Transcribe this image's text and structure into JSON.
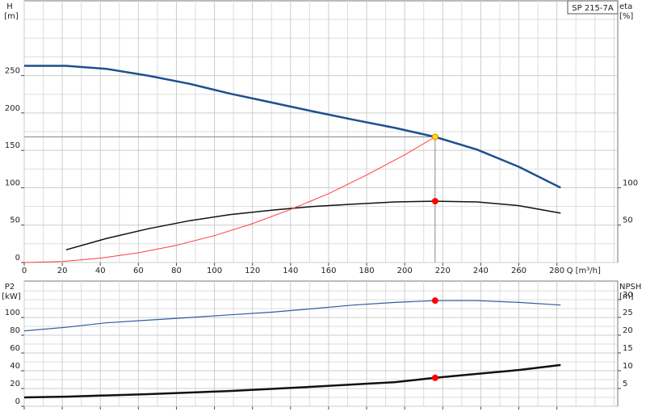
{
  "chart_data": [
    {
      "type": "line",
      "label_box": "SP 215-7A",
      "ylabel": "H",
      "yunit": "[m]",
      "y2label": "eta",
      "y2unit": "[%]",
      "xlabel": "Q [m³/h]",
      "xlim": [
        0,
        312
      ],
      "ylim": [
        0,
        350
      ],
      "y2lim": [
        0,
        350
      ],
      "xticks": [
        0,
        20,
        40,
        60,
        80,
        100,
        120,
        140,
        160,
        180,
        200,
        220,
        240,
        260,
        280
      ],
      "xminorticks": [
        10,
        30,
        50,
        70,
        90,
        110,
        130,
        150,
        170,
        190,
        210,
        230,
        250,
        270,
        290,
        300,
        310
      ],
      "yticks": [
        0,
        50,
        100,
        150,
        200,
        250
      ],
      "yminorticks": [
        25,
        75,
        125,
        175,
        225,
        275,
        300,
        325
      ],
      "y2ticks": [
        50,
        100
      ],
      "grid": true,
      "series": [
        {
          "color": "#1f4f8f",
          "width": 2.5,
          "axis": "y",
          "x": [
            0,
            22,
            43,
            65,
            87,
            108,
            130,
            152,
            173,
            195,
            216,
            238,
            260,
            282
          ],
          "values": [
            263,
            263,
            259,
            250,
            239,
            226,
            214,
            202,
            191,
            180,
            168,
            151,
            128,
            100
          ]
        },
        {
          "color": "#111111",
          "width": 1.5,
          "axis": "y2",
          "x": [
            22,
            43,
            65,
            87,
            108,
            130,
            152,
            173,
            195,
            216,
            238,
            260,
            282
          ],
          "values": [
            17,
            32,
            45,
            56,
            64,
            70,
            75,
            78,
            81,
            82,
            81,
            76,
            66
          ]
        },
        {
          "color": "#ff3b3b",
          "width": 1,
          "axis": "y",
          "x": [
            0,
            20,
            40,
            60,
            80,
            100,
            120,
            140,
            160,
            180,
            200,
            216
          ],
          "values": [
            0,
            1.4,
            5.8,
            13,
            23,
            36,
            52,
            71,
            92,
            117,
            144,
            168
          ]
        }
      ],
      "markers": [
        {
          "x": 216,
          "y": 168,
          "axis": "y",
          "color": "#ffe000",
          "stroke": "#e08000",
          "crosshair": true
        },
        {
          "x": 216,
          "y": 82,
          "axis": "y2",
          "color": "#ff0000",
          "stroke": "#ff0000",
          "crosshair": false
        }
      ]
    },
    {
      "type": "line",
      "ylabel": "P2",
      "yunit": "[kW]",
      "y2label": "NPSH",
      "y2unit": "[m]",
      "xlim": [
        0,
        312
      ],
      "ylim": [
        0,
        141
      ],
      "y2lim": [
        0,
        35.2
      ],
      "xticks": [
        0,
        20,
        40,
        60,
        80,
        100,
        120,
        140,
        160,
        180,
        200,
        220,
        240,
        260,
        280
      ],
      "xminorticks": [
        10,
        30,
        50,
        70,
        90,
        110,
        130,
        150,
        170,
        190,
        210,
        230,
        250,
        270,
        290,
        300,
        310
      ],
      "yticks": [
        0,
        20,
        40,
        60,
        80,
        100
      ],
      "yminorticks": [
        10,
        30,
        50,
        70,
        90,
        110,
        120,
        130
      ],
      "y2ticks": [
        5,
        10,
        15,
        20,
        25,
        30
      ],
      "grid": true,
      "series": [
        {
          "color": "#2e5c9c",
          "width": 1.2,
          "axis": "y",
          "x": [
            0,
            22,
            43,
            65,
            87,
            108,
            130,
            152,
            173,
            195,
            216,
            238,
            260,
            282
          ],
          "values": [
            85,
            89,
            94,
            97,
            100,
            103,
            106,
            110,
            114,
            117,
            119,
            119,
            117,
            114
          ]
        },
        {
          "color": "#111111",
          "width": 2.5,
          "axis": "y2",
          "x": [
            0,
            22,
            65,
            108,
            152,
            195,
            216,
            238,
            260,
            282
          ],
          "values": [
            2.5,
            2.7,
            3.4,
            4.3,
            5.5,
            6.8,
            8,
            9.1,
            10.2,
            11.6
          ]
        }
      ],
      "markers": [
        {
          "x": 216,
          "y": 119,
          "axis": "y",
          "color": "#ff0000",
          "stroke": "#ff0000",
          "crosshair": false
        },
        {
          "x": 216,
          "y": 8,
          "axis": "y2",
          "color": "#ff0000",
          "stroke": "#ff0000",
          "crosshair": false
        }
      ]
    }
  ]
}
